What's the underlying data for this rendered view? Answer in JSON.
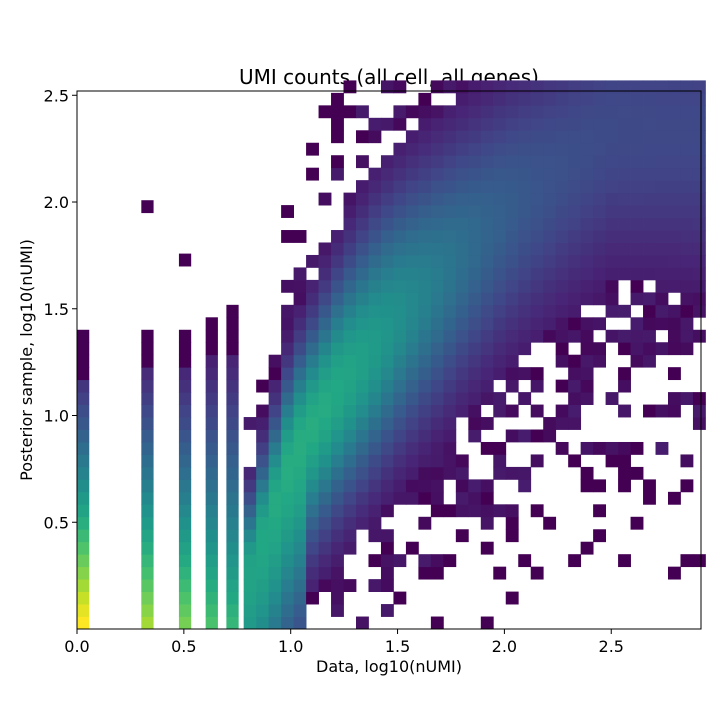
{
  "chart_data": {
    "type": "heatmap",
    "title": "UMI counts (all cell, all genes)",
    "xlabel": "Data, log10(nUMI)",
    "ylabel": "Posterior sample, log10(nUMI)",
    "xlim": [
      0.0,
      2.92
    ],
    "ylim": [
      0.0,
      2.52
    ],
    "x_ticks": [
      0.0,
      0.5,
      1.0,
      1.5,
      2.0,
      2.5
    ],
    "x_tick_labels": [
      "0.0",
      "0.5",
      "1.0",
      "1.5",
      "2.0",
      "2.5"
    ],
    "y_ticks": [
      0.5,
      1.0,
      1.5,
      2.0,
      2.5
    ],
    "y_tick_labels": [
      "0.5",
      "1.0",
      "1.5",
      "2.0",
      "2.5"
    ],
    "colormap": "viridis",
    "background": "#ffffff",
    "bin_width": 0.0584,
    "bin_height": 0.0584,
    "bins_x": 50,
    "bins_y": 43,
    "columns": [
      {
        "x": 0.0,
        "y_range": [
          0.0,
          1.36
        ],
        "peak_y": 0.0,
        "peak_intensity": 1.0
      },
      {
        "x": 0.301,
        "y_range": [
          0.0,
          1.4
        ],
        "peak_y": 0.0,
        "peak_intensity": 0.85,
        "outliers_y": [
          1.95
        ]
      },
      {
        "x": 0.477,
        "y_range": [
          0.0,
          1.4
        ],
        "peak_y": 0.0,
        "peak_intensity": 0.78,
        "outliers_y": [
          1.7
        ]
      },
      {
        "x": 0.602,
        "y_range": [
          0.0,
          1.45
        ],
        "peak_y": 0.05,
        "peak_intensity": 0.7
      },
      {
        "x": 0.699,
        "y_range": [
          0.0,
          1.5
        ],
        "peak_y": 0.1,
        "peak_intensity": 0.65
      }
    ],
    "main_cloud": {
      "x_range": [
        0.78,
        2.92
      ],
      "ridge": [
        [
          0.8,
          0.25
        ],
        [
          1.0,
          0.8
        ],
        [
          1.2,
          1.1
        ],
        [
          1.5,
          1.45
        ],
        [
          2.0,
          1.95
        ],
        [
          2.5,
          2.35
        ]
      ],
      "peak_intensity": 0.62
    }
  }
}
